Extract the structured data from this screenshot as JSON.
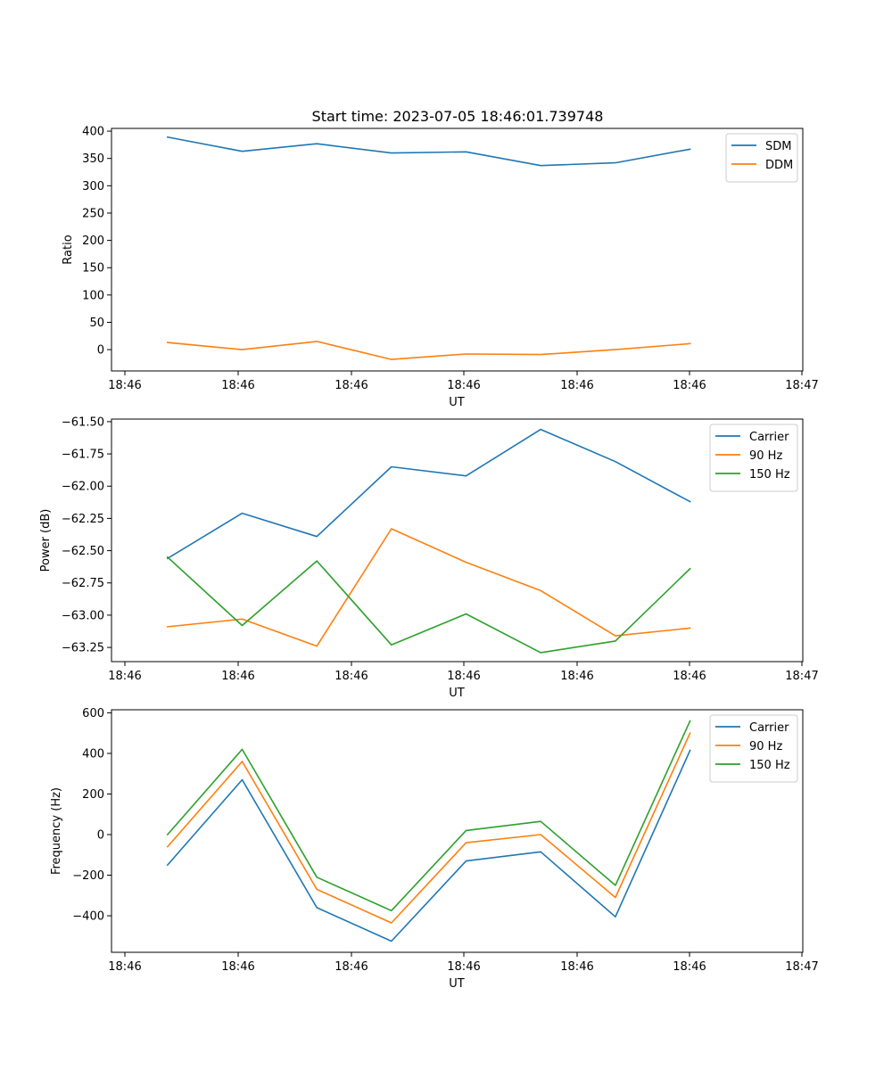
{
  "title": "Start time: 2023-07-05 18:46:01.739748",
  "chart_data": [
    {
      "type": "line",
      "title": "Start time: 2023-07-05 18:46:01.739748",
      "xlabel": "UT",
      "ylabel": "Ratio",
      "x_tick_labels": [
        "18:46",
        "18:46",
        "18:46",
        "18:46",
        "18:46",
        "18:46",
        "18:47"
      ],
      "y_ticks": [
        0,
        50,
        100,
        150,
        200,
        250,
        300,
        350,
        400
      ],
      "ylim": [
        -39,
        405
      ],
      "legend_position": "top-right",
      "x": [
        1,
        2,
        3,
        4,
        5,
        6,
        7,
        8
      ],
      "xlim": [
        0.25,
        9.51
      ],
      "series": [
        {
          "name": "SDM",
          "color": "#1f77b4",
          "values": [
            389,
            363,
            377,
            360,
            362,
            337,
            342,
            367
          ]
        },
        {
          "name": "DDM",
          "color": "#ff7f0e",
          "values": [
            13,
            0,
            15,
            -18,
            -8,
            -9,
            0,
            11
          ]
        }
      ]
    },
    {
      "type": "line",
      "title": "",
      "xlabel": "UT",
      "ylabel": "Power (dB)",
      "x_tick_labels": [
        "18:46",
        "18:46",
        "18:46",
        "18:46",
        "18:46",
        "18:46",
        "18:47"
      ],
      "y_ticks": [
        -63.25,
        -63.0,
        -62.75,
        -62.5,
        -62.25,
        -62.0,
        -61.75,
        -61.5
      ],
      "y_tick_labels": [
        "−63.25",
        "−63.00",
        "−62.75",
        "−62.50",
        "−62.25",
        "−62.00",
        "−61.75",
        "−61.50"
      ],
      "ylim": [
        -63.36,
        -61.48
      ],
      "legend_position": "top-right",
      "x": [
        1,
        2,
        3,
        4,
        5,
        6,
        7,
        8
      ],
      "xlim": [
        0.25,
        9.51
      ],
      "series": [
        {
          "name": "Carrier",
          "color": "#1f77b4",
          "values": [
            -62.56,
            -62.21,
            -62.39,
            -61.85,
            -61.92,
            -61.56,
            -61.81,
            -62.12
          ]
        },
        {
          "name": "90 Hz",
          "color": "#ff7f0e",
          "values": [
            -63.09,
            -63.03,
            -63.24,
            -62.33,
            -62.59,
            -62.81,
            -63.16,
            -63.1
          ]
        },
        {
          "name": "150 Hz",
          "color": "#2ca02c",
          "values": [
            -62.55,
            -63.08,
            -62.58,
            -63.23,
            -62.99,
            -63.29,
            -63.2,
            -62.64
          ]
        }
      ]
    },
    {
      "type": "line",
      "title": "",
      "xlabel": "UT",
      "ylabel": "Frequency (Hz)",
      "x_tick_labels": [
        "18:46",
        "18:46",
        "18:46",
        "18:46",
        "18:46",
        "18:46",
        "18:47"
      ],
      "y_ticks": [
        -400,
        -200,
        0,
        200,
        400,
        600
      ],
      "y_tick_labels": [
        "−400",
        "−200",
        "0",
        "200",
        "400",
        "600"
      ],
      "ylim": [
        -580,
        615
      ],
      "legend_position": "top-right",
      "x": [
        1,
        2,
        3,
        4,
        5,
        6,
        7,
        8
      ],
      "xlim": [
        0.25,
        9.51
      ],
      "series": [
        {
          "name": "Carrier",
          "color": "#1f77b4",
          "values": [
            -150,
            270,
            -360,
            -525,
            -130,
            -85,
            -405,
            415
          ]
        },
        {
          "name": "90 Hz",
          "color": "#ff7f0e",
          "values": [
            -60,
            360,
            -270,
            -435,
            -40,
            0,
            -310,
            500
          ]
        },
        {
          "name": "150 Hz",
          "color": "#2ca02c",
          "values": [
            0,
            420,
            -210,
            -375,
            20,
            65,
            -250,
            560
          ]
        }
      ]
    }
  ]
}
